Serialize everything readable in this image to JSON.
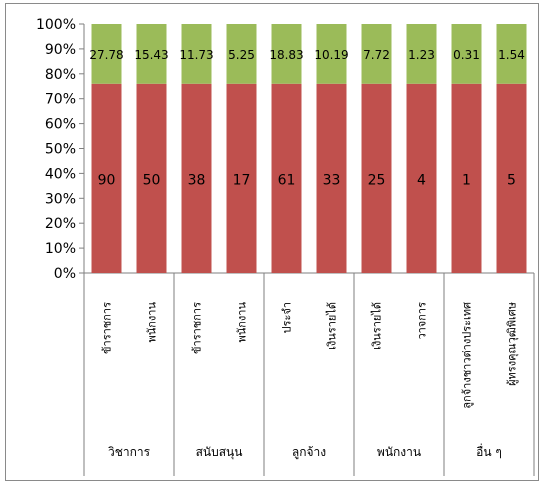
{
  "chart_data": {
    "type": "bar",
    "stacked": true,
    "percent_stacked": true,
    "ylim": [
      0,
      100
    ],
    "y_ticks": [
      "0%",
      "10%",
      "20%",
      "30%",
      "40%",
      "50%",
      "60%",
      "70%",
      "80%",
      "90%",
      "100%"
    ],
    "categories": [
      "ข้าราชการ",
      "พนักงาน",
      "ข้าราชการ",
      "พนักงาน",
      "ประจำ",
      "เงินรายได้",
      "เงินรายได้",
      "วาจการ",
      "ลูกจ้างชาวต่างประเทศ",
      "ผู้ทรงคุณวุฒิพิเศษ"
    ],
    "groups": [
      {
        "label": "วิชาการ",
        "count": 2
      },
      {
        "label": "สนับสนุน",
        "count": 2
      },
      {
        "label": "ลูกจ้าง",
        "count": 2
      },
      {
        "label": "พนักงาน",
        "count": 2
      },
      {
        "label": "อื่น ๆ",
        "count": 2
      }
    ],
    "series": [
      {
        "color": "#c0504d",
        "segment_percent": 76,
        "values": [
          "90",
          "50",
          "38",
          "17",
          "61",
          "33",
          "25",
          "4",
          "1",
          "5"
        ]
      },
      {
        "color": "#9bbb59",
        "segment_percent": 24,
        "values": [
          "27.78",
          "15.43",
          "11.73",
          "5.25",
          "18.83",
          "10.19",
          "7.72",
          "1.23",
          "0.31",
          "1.54"
        ]
      }
    ],
    "grid": false,
    "legend": "none"
  }
}
